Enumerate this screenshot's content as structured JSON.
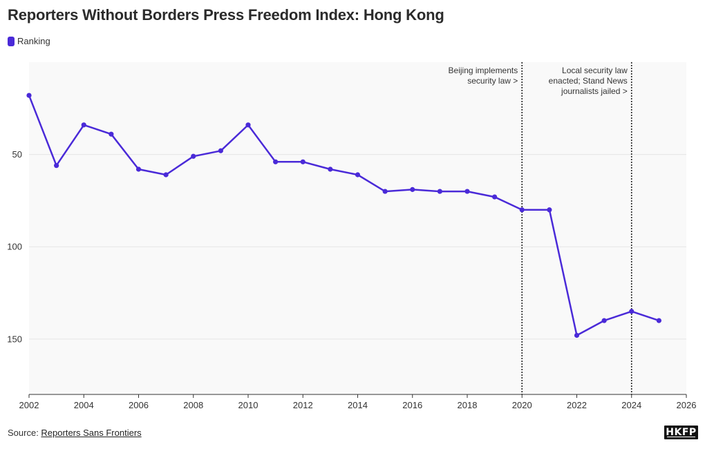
{
  "title": "Reporters Without Borders Press Freedom Index: Hong Kong",
  "colors": {
    "line": "#4a2ad8",
    "plot_bg": "#f9f9f9",
    "grid": "#e6e6e6"
  },
  "source": {
    "prefix": "Source: ",
    "link_text": "Reporters Sans Frontiers"
  },
  "logo_text": "HKFP",
  "chart_data": {
    "type": "line",
    "title": "Reporters Without Borders Press Freedom Index: Hong Kong",
    "xlabel": "",
    "ylabel": "",
    "xlim": [
      2002,
      2026
    ],
    "ylim": [
      180,
      0
    ],
    "y_inverted": true,
    "xticks": [
      2002,
      2004,
      2006,
      2008,
      2010,
      2012,
      2014,
      2016,
      2018,
      2020,
      2022,
      2024,
      2026
    ],
    "yticks": [
      50,
      100,
      150
    ],
    "grid": "horizontal",
    "legend_position": "top-left",
    "series": [
      {
        "name": "Ranking",
        "x": [
          2002,
          2003,
          2004,
          2005,
          2006,
          2007,
          2008,
          2009,
          2010,
          2011,
          2012,
          2013,
          2014,
          2015,
          2016,
          2017,
          2018,
          2019,
          2020,
          2021,
          2022,
          2023,
          2024,
          2025
        ],
        "y": [
          18,
          56,
          34,
          39,
          58,
          61,
          51,
          48,
          34,
          54,
          54,
          58,
          61,
          70,
          69,
          70,
          70,
          73,
          80,
          80,
          148,
          140,
          135,
          140
        ]
      }
    ],
    "annotations": [
      {
        "x": 2020,
        "lines": [
          "Beijing implements",
          "security law >"
        ]
      },
      {
        "x": 2024,
        "lines": [
          "Local security law",
          "enacted; Stand News",
          "journalists jailed >"
        ]
      }
    ]
  }
}
